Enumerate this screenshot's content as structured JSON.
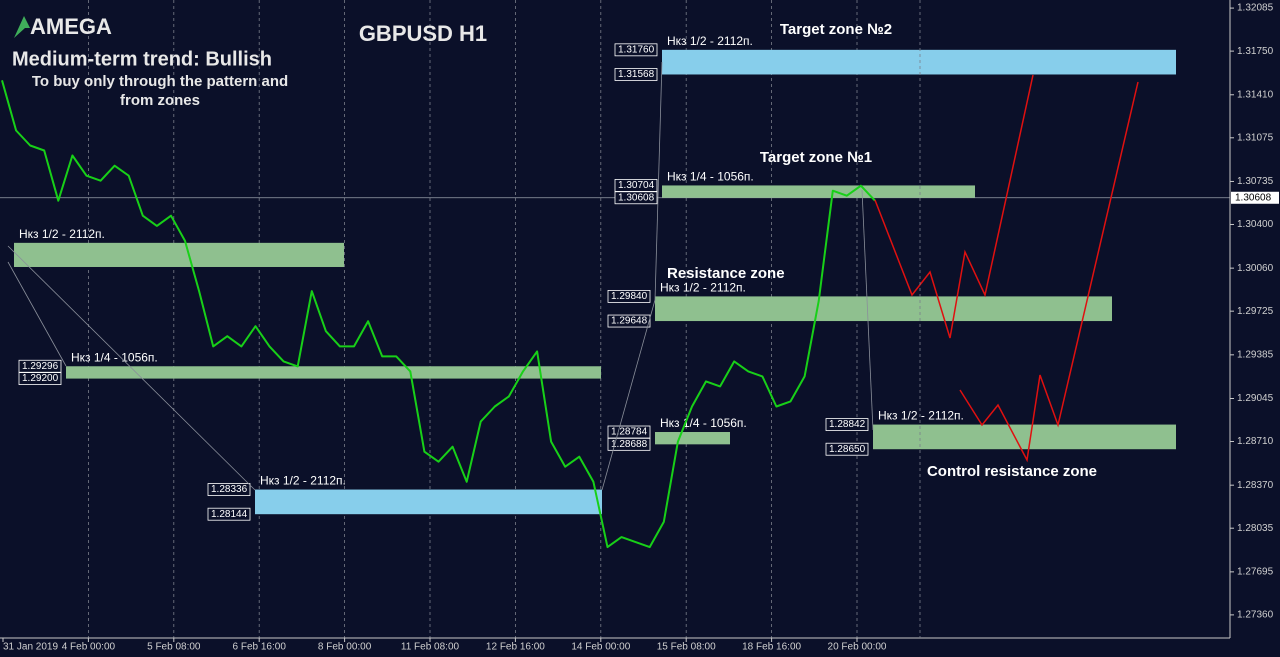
{
  "chart_data": {
    "type": "line",
    "brand": "AMEGA",
    "title": "GBPUSD H1",
    "subtitle": "Medium-term trend: Bullish",
    "note_lines": [
      "To buy only through the pattern  and",
      "from zones"
    ],
    "categories": [
      "31 Jan 2019",
      "4 Feb 00:00",
      "5 Feb 08:00",
      "6 Feb 16:00",
      "8 Feb 00:00",
      "11 Feb 08:00",
      "12 Feb 16:00",
      "14 Feb 00:00",
      "15 Feb 08:00",
      "18 Feb 16:00",
      "20 Feb 00:00"
    ],
    "ylim": [
      1.2718,
      1.32148
    ],
    "yticks": [
      1.32085,
      {
        "value": 1.3175,
        "label": "1.31750"
      },
      {
        "value": 1.3141,
        "label": "1.31410"
      },
      1.31075,
      1.30735,
      {
        "value": 1.304,
        "label": "1.30400"
      },
      {
        "value": 1.3006,
        "label": "1.30060"
      },
      1.29725,
      1.29385,
      1.29045,
      {
        "value": 1.2871,
        "label": "1.28710"
      },
      {
        "value": 1.2837,
        "label": "1.28370"
      },
      1.28035,
      1.27695,
      {
        "value": 1.2736,
        "label": "1.27360"
      }
    ],
    "grid": true,
    "current_price": 1.30608,
    "price": {
      "color": "#18d018",
      "values": [
        1.31523,
        1.31132,
        1.31015,
        1.30976,
        1.30585,
        1.30937,
        1.3078,
        1.30741,
        1.30858,
        1.3078,
        1.30468,
        1.30389,
        1.30468,
        1.30272,
        1.29881,
        1.29451,
        1.2953,
        1.29451,
        1.29608,
        1.29451,
        1.29334,
        1.29295,
        1.29881,
        1.29569,
        1.29451,
        1.29451,
        1.29647,
        1.29373,
        1.29373,
        1.29256,
        1.28631,
        1.28553,
        1.2867,
        1.28396,
        1.28865,
        1.28983,
        1.29061,
        1.29256,
        1.29412,
        1.28709,
        1.28514,
        1.28592,
        1.28396,
        1.27888,
        1.27966,
        1.27927,
        1.27888,
        1.28084,
        1.28709,
        1.28983,
        1.29178,
        1.29139,
        1.29334,
        1.29256,
        1.29217,
        1.28983,
        1.29022,
        1.29217,
        1.29803,
        1.30663,
        1.30624,
        1.30702,
        1.30585
      ]
    },
    "zones": [
      {
        "label": "Нкз 1/2 - 2112п.",
        "color": "#8fc08f",
        "top": 1.30257,
        "bottom": 1.30069
      },
      {
        "label": "Нкз 1/4 - 1056п.",
        "color": "#8fc08f",
        "top": 1.29296,
        "bottom": {
          "value": 1.292,
          "label": "1.29200"
        }
      },
      {
        "label": "Нкз 1/2 - 2112п.",
        "color": "#87ceeb",
        "top": 1.28336,
        "bottom": 1.28144
      },
      {
        "label": "Нкз 1/2 - 2112п.",
        "heading": "Target zone №2",
        "color": "#87ceeb",
        "top": {
          "value": 1.3176,
          "label": "1.31760"
        },
        "bottom": 1.31568
      },
      {
        "label": "Нкз 1/4 - 1056п.",
        "heading": "Target zone №1",
        "color": "#8fc08f",
        "top": 1.30704,
        "bottom": 1.30608
      },
      {
        "label": "Нкз 1/2 - 2112п.",
        "heading": "Resistance zone",
        "color": "#8fc08f",
        "top": {
          "value": 1.2984,
          "label": "1.29840"
        },
        "bottom": 1.29648
      },
      {
        "label": "Нкз 1/4 - 1056п.",
        "color": "#8fc08f",
        "top": 1.28784,
        "bottom": 1.28688
      },
      {
        "label": "Нкз 1/2 - 2112п.",
        "heading": "Control resistance zone",
        "color": "#8fc08f",
        "top": 1.28842,
        "bottom": {
          "value": 1.2865,
          "label": "1.28650"
        }
      }
    ]
  }
}
